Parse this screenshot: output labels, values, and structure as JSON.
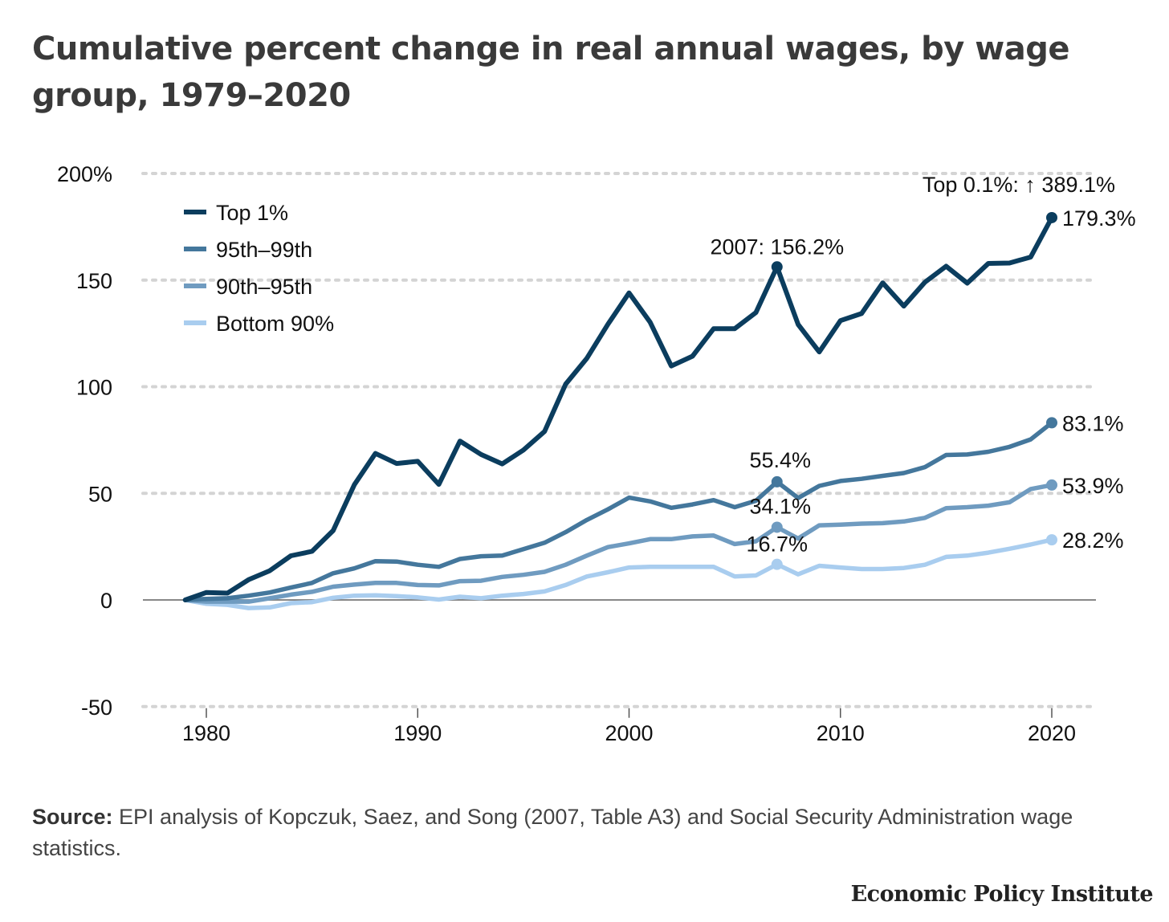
{
  "title": "Cumulative percent change in real annual wages, by wage group, 1979–2020",
  "source": {
    "label": "Source:",
    "text": " EPI analysis of Kopczuk, Saez, and Song (2007, Table A3) and Social Security Administration wage statistics."
  },
  "brand": "Economic Policy Institute",
  "colors": {
    "top1": "#0b3d5e",
    "p95_99": "#44779c",
    "p90_95": "#6f9bc0",
    "bottom90": "#a9cdef",
    "grid": "#d4d4d4",
    "zero": "#888888"
  },
  "chart_data": {
    "type": "line",
    "xlabel": "",
    "ylabel": "",
    "xlim": [
      1977,
      2022
    ],
    "ylim": [
      -50,
      200
    ],
    "y_ticks": [
      {
        "value": 200,
        "label": "200%"
      },
      {
        "value": 150,
        "label": "150"
      },
      {
        "value": 100,
        "label": "100"
      },
      {
        "value": 50,
        "label": "50"
      },
      {
        "value": 0,
        "label": "0"
      },
      {
        "value": -50,
        "label": "-50"
      }
    ],
    "x_ticks": [
      {
        "value": 1980,
        "label": "1980"
      },
      {
        "value": 1990,
        "label": "1990"
      },
      {
        "value": 2000,
        "label": "2000"
      },
      {
        "value": 2010,
        "label": "2010"
      },
      {
        "value": 2020,
        "label": "2020"
      }
    ],
    "grid": "horizontal dotted",
    "legend_placement": "top-left",
    "series": [
      {
        "key": "top1",
        "name": "Top 1%",
        "x": [
          1979,
          1980,
          1981,
          1982,
          1983,
          1984,
          1985,
          1986,
          1987,
          1988,
          1989,
          1990,
          1991,
          1992,
          1993,
          1994,
          1995,
          1996,
          1997,
          1998,
          1999,
          2000,
          2001,
          2002,
          2003,
          2004,
          2005,
          2006,
          2007,
          2008,
          2009,
          2010,
          2011,
          2012,
          2013,
          2014,
          2015,
          2016,
          2017,
          2018,
          2019,
          2020
        ],
        "values": [
          0,
          3.5,
          3.2,
          9.5,
          13.7,
          20.7,
          22.8,
          32.5,
          54.0,
          68.7,
          64.0,
          65.0,
          54.2,
          74.5,
          68.2,
          63.8,
          70.3,
          79.0,
          101.2,
          113.3,
          129.3,
          144.0,
          130.2,
          109.7,
          114.3,
          127.2,
          127.2,
          134.8,
          156.2,
          129.2,
          116.3,
          131.0,
          134.3,
          148.7,
          137.8,
          149.0,
          156.5,
          148.6,
          157.8,
          158.0,
          160.8,
          179.3
        ]
      },
      {
        "key": "p95_99",
        "name": "95th–99th",
        "x": [
          1979,
          1980,
          1981,
          1982,
          1983,
          1984,
          1985,
          1986,
          1987,
          1988,
          1989,
          1990,
          1991,
          1992,
          1993,
          1994,
          1995,
          1996,
          1997,
          1998,
          1999,
          2000,
          2001,
          2002,
          2003,
          2004,
          2005,
          2006,
          2007,
          2008,
          2009,
          2010,
          2011,
          2012,
          2013,
          2014,
          2015,
          2016,
          2017,
          2018,
          2019,
          2020
        ],
        "values": [
          0,
          0.5,
          0.8,
          2.0,
          3.5,
          5.8,
          8.0,
          12.5,
          14.8,
          18.2,
          18.0,
          16.5,
          15.5,
          19.2,
          20.5,
          20.8,
          23.8,
          26.8,
          31.8,
          37.5,
          42.5,
          48.0,
          46.2,
          43.2,
          44.8,
          46.8,
          43.5,
          46.5,
          55.4,
          47.8,
          53.5,
          55.8,
          56.8,
          58.2,
          59.5,
          62.3,
          68.0,
          68.2,
          69.5,
          71.8,
          75.3,
          83.1
        ]
      },
      {
        "key": "p90_95",
        "name": "90th–95th",
        "x": [
          1979,
          1980,
          1981,
          1982,
          1983,
          1984,
          1985,
          1986,
          1987,
          1988,
          1989,
          1990,
          1991,
          1992,
          1993,
          1994,
          1995,
          1996,
          1997,
          1998,
          1999,
          2000,
          2001,
          2002,
          2003,
          2004,
          2005,
          2006,
          2007,
          2008,
          2009,
          2010,
          2011,
          2012,
          2013,
          2014,
          2015,
          2016,
          2017,
          2018,
          2019,
          2020
        ],
        "values": [
          0,
          -0.8,
          -0.8,
          -0.8,
          0.8,
          2.5,
          3.8,
          6.2,
          7.2,
          8.0,
          8.0,
          7.0,
          6.8,
          8.8,
          9.0,
          10.8,
          11.8,
          13.2,
          16.5,
          20.8,
          24.8,
          26.5,
          28.5,
          28.5,
          29.8,
          30.2,
          26.2,
          27.5,
          34.1,
          28.8,
          35.0,
          35.3,
          35.8,
          36.0,
          36.8,
          38.5,
          43.0,
          43.5,
          44.2,
          45.8,
          52.0,
          53.9
        ]
      },
      {
        "key": "bottom90",
        "name": "Bottom 90%",
        "x": [
          1979,
          1980,
          1981,
          1982,
          1983,
          1984,
          1985,
          1986,
          1987,
          1988,
          1989,
          1990,
          1991,
          1992,
          1993,
          1994,
          1995,
          1996,
          1997,
          1998,
          1999,
          2000,
          2001,
          2002,
          2003,
          2004,
          2005,
          2006,
          2007,
          2008,
          2009,
          2010,
          2011,
          2012,
          2013,
          2014,
          2015,
          2016,
          2017,
          2018,
          2019,
          2020
        ],
        "values": [
          0,
          -1.8,
          -2.3,
          -3.8,
          -3.5,
          -1.5,
          -1.0,
          1.0,
          2.0,
          2.2,
          1.8,
          1.2,
          0.2,
          1.5,
          0.8,
          2.0,
          2.8,
          4.0,
          7.0,
          11.0,
          13.0,
          15.2,
          15.5,
          15.5,
          15.5,
          15.5,
          11.0,
          11.5,
          16.7,
          12.0,
          16.0,
          15.2,
          14.5,
          14.5,
          15.0,
          16.5,
          20.2,
          20.8,
          22.2,
          24.0,
          26.0,
          28.2
        ]
      }
    ],
    "end_labels": [
      {
        "series": "top1",
        "x": 2020,
        "value": 179.3,
        "label": "179.3%"
      },
      {
        "series": "p95_99",
        "x": 2020,
        "value": 83.1,
        "label": "83.1%"
      },
      {
        "series": "p90_95",
        "x": 2020,
        "value": 53.9,
        "label": "53.9%"
      },
      {
        "series": "bottom90",
        "x": 2020,
        "value": 28.2,
        "label": "28.2%"
      }
    ],
    "annotations": [
      {
        "series": "top1",
        "x": 2007,
        "value": 156.2,
        "label": "2007: 156.2%"
      },
      {
        "series": "p95_99",
        "x": 2007,
        "value": 55.4,
        "label": "55.4%"
      },
      {
        "series": "p90_95",
        "x": 2007,
        "value": 34.1,
        "label": "34.1%"
      },
      {
        "series": "bottom90",
        "x": 2007,
        "value": 16.7,
        "label": "16.7%"
      }
    ],
    "top_note": "Top 0.1%: ↑ 389.1%"
  }
}
